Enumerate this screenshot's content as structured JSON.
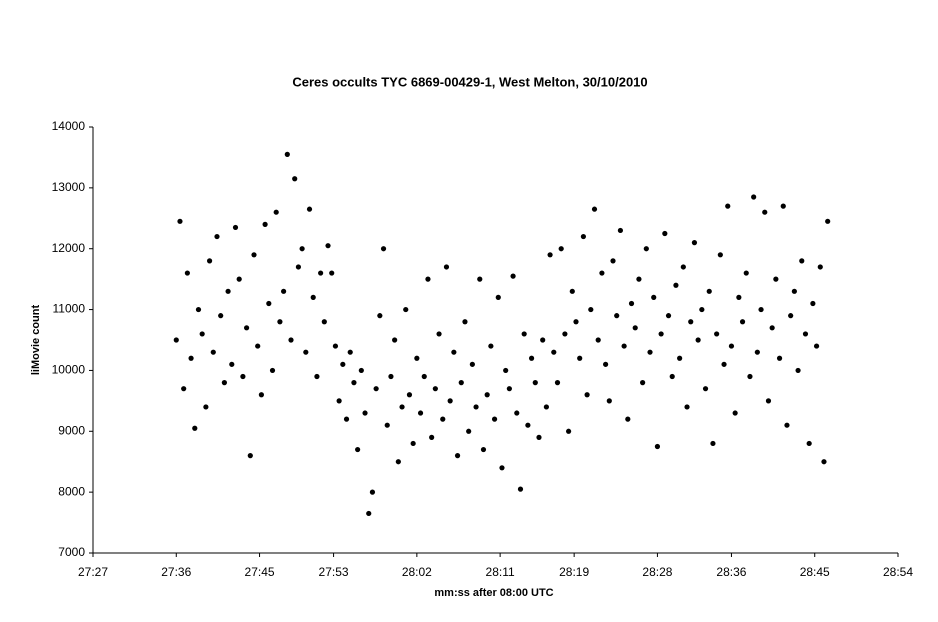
{
  "chart_data": {
    "type": "scatter",
    "title": "Ceres occults TYC 6869-00429-1, West Melton, 30/10/2010",
    "x_label": "mm:ss after 08:00 UTC",
    "y_label": "liMovie count",
    "color": "#000000",
    "grid": false,
    "xlim": [
      1647,
      1734
    ],
    "ylim": [
      7000,
      14000
    ],
    "xticks": [
      {
        "value": 1647,
        "label": "27:27"
      },
      {
        "value": 1656,
        "label": "27:36"
      },
      {
        "value": 1665,
        "label": "27:45"
      },
      {
        "value": 1673,
        "label": "27:53"
      },
      {
        "value": 1682,
        "label": "28:02"
      },
      {
        "value": 1691,
        "label": "28:11"
      },
      {
        "value": 1699,
        "label": "28:19"
      },
      {
        "value": 1708,
        "label": "28:28"
      },
      {
        "value": 1716,
        "label": "28:36"
      },
      {
        "value": 1725,
        "label": "28:45"
      },
      {
        "value": 1734,
        "label": "28:54"
      }
    ],
    "yticks": [
      7000,
      8000,
      9000,
      10000,
      11000,
      12000,
      13000,
      14000
    ],
    "x": [
      1656.0,
      1656.4,
      1656.8,
      1657.2,
      1657.6,
      1658.0,
      1658.4,
      1658.8,
      1659.2,
      1659.6,
      1660.0,
      1660.4,
      1660.8,
      1661.2,
      1661.6,
      1662.0,
      1662.4,
      1662.8,
      1663.2,
      1663.6,
      1664.0,
      1664.4,
      1664.8,
      1665.2,
      1665.6,
      1666.0,
      1666.4,
      1666.8,
      1667.2,
      1667.6,
      1668.0,
      1668.4,
      1668.8,
      1669.2,
      1669.6,
      1670.0,
      1670.4,
      1670.8,
      1671.2,
      1671.6,
      1672.0,
      1672.4,
      1672.8,
      1673.2,
      1673.6,
      1674.0,
      1674.4,
      1674.8,
      1675.2,
      1675.6,
      1676.0,
      1676.4,
      1676.8,
      1677.2,
      1677.6,
      1678.0,
      1678.4,
      1678.8,
      1679.2,
      1679.6,
      1680.0,
      1680.4,
      1680.8,
      1681.2,
      1681.6,
      1682.0,
      1682.4,
      1682.8,
      1683.2,
      1683.6,
      1684.0,
      1684.4,
      1684.8,
      1685.2,
      1685.6,
      1686.0,
      1686.4,
      1686.8,
      1687.2,
      1687.6,
      1688.0,
      1688.4,
      1688.8,
      1689.2,
      1689.6,
      1690.0,
      1690.4,
      1690.8,
      1691.2,
      1691.6,
      1692.0,
      1692.4,
      1692.8,
      1693.2,
      1693.6,
      1694.0,
      1694.4,
      1694.8,
      1695.2,
      1695.6,
      1696.0,
      1696.4,
      1696.8,
      1697.2,
      1697.6,
      1698.0,
      1698.4,
      1698.8,
      1699.2,
      1699.6,
      1700.0,
      1700.4,
      1700.8,
      1701.2,
      1701.6,
      1702.0,
      1702.4,
      1702.8,
      1703.2,
      1703.6,
      1704.0,
      1704.4,
      1704.8,
      1705.2,
      1705.6,
      1706.0,
      1706.4,
      1706.8,
      1707.2,
      1707.6,
      1708.0,
      1708.4,
      1708.8,
      1709.2,
      1709.6,
      1710.0,
      1710.4,
      1710.8,
      1711.2,
      1711.6,
      1712.0,
      1712.4,
      1712.8,
      1713.2,
      1713.6,
      1714.0,
      1714.4,
      1714.8,
      1715.2,
      1715.6,
      1716.0,
      1716.4,
      1716.8,
      1717.2,
      1717.6,
      1718.0,
      1718.4,
      1718.8,
      1719.2,
      1719.6,
      1720.0,
      1720.4,
      1720.8,
      1721.2,
      1721.6,
      1722.0,
      1722.4,
      1722.8,
      1723.2,
      1723.6,
      1724.0,
      1724.4,
      1724.8,
      1725.2,
      1725.6,
      1726.0,
      1726.4
    ],
    "values": [
      10500,
      12450,
      9700,
      11600,
      10200,
      9050,
      11000,
      10600,
      9400,
      11800,
      10300,
      12200,
      10900,
      9800,
      11300,
      10100,
      12350,
      11500,
      9900,
      10700,
      8600,
      11900,
      10400,
      9600,
      12400,
      11100,
      10000,
      12600,
      10800,
      11300,
      13550,
      10500,
      13150,
      11700,
      12000,
      10300,
      12650,
      11200,
      9900,
      11600,
      10800,
      12050,
      11600,
      10400,
      9500,
      10100,
      9200,
      10300,
      9800,
      8700,
      10000,
      9300,
      7650,
      8000,
      9700,
      10900,
      12000,
      9100,
      9900,
      10500,
      8500,
      9400,
      11000,
      9600,
      8800,
      10200,
      9300,
      9900,
      11500,
      8900,
      9700,
      10600,
      9200,
      11700,
      9500,
      10300,
      8600,
      9800,
      10800,
      9000,
      10100,
      9400,
      11500,
      8700,
      9600,
      10400,
      9200,
      11200,
      8400,
      10000,
      9700,
      11550,
      9300,
      8050,
      10600,
      9100,
      10200,
      9800,
      8900,
      10500,
      9400,
      11900,
      10300,
      9800,
      12000,
      10600,
      9000,
      11300,
      10800,
      10200,
      12200,
      9600,
      11000,
      12650,
      10500,
      11600,
      10100,
      9500,
      11800,
      10900,
      12300,
      10400,
      9200,
      11100,
      10700,
      11500,
      9800,
      12000,
      10300,
      11200,
      8750,
      10600,
      12250,
      10900,
      9900,
      11400,
      10200,
      11700,
      9400,
      10800,
      12100,
      10500,
      11000,
      9700,
      11300,
      8800,
      10600,
      11900,
      10100,
      12700,
      10400,
      9300,
      11200,
      10800,
      11600,
      9900,
      12850,
      10300,
      11000,
      12600,
      9500,
      10700,
      11500,
      10200,
      12700,
      9100,
      10900,
      11300,
      10000,
      11800,
      10600,
      8800,
      11100,
      10400,
      11700,
      8500,
      12450
    ]
  }
}
